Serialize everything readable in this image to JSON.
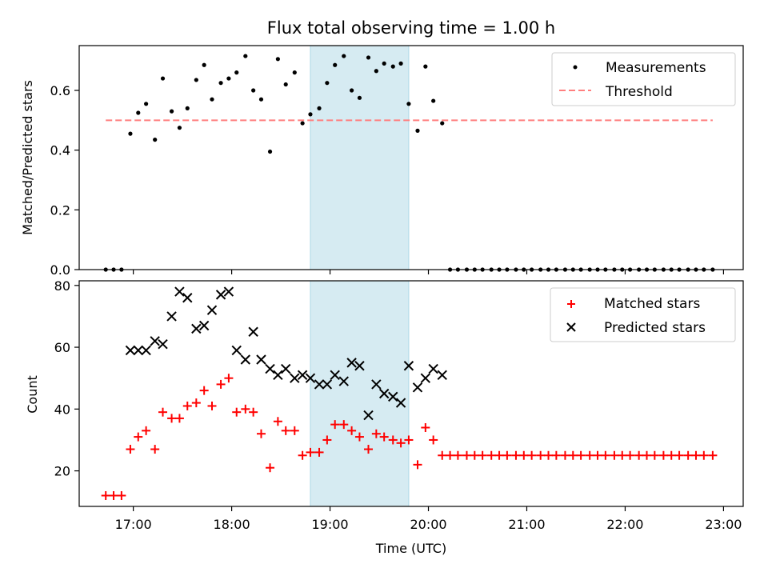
{
  "chart_data": [
    {
      "type": "scatter",
      "title": "Flux total observing time = 1.00 h",
      "xlabel": "",
      "ylabel": "Matched/Predicted stars",
      "xlim_hours": [
        16.45,
        23.2
      ],
      "ylim": [
        0,
        0.75
      ],
      "yticks": [
        0.0,
        0.2,
        0.4,
        0.6
      ],
      "ytick_labels": [
        "0.0",
        "0.2",
        "0.4",
        "0.6"
      ],
      "xticks_hours": [
        17,
        18,
        19,
        20,
        21,
        22,
        23
      ],
      "shaded_band_hours": [
        18.8,
        19.8
      ],
      "shaded_color": "#add8e6",
      "legend_location": "upper right",
      "series": [
        {
          "name": "Measurements",
          "marker": "dot",
          "color": "#000000",
          "points": [
            [
              16.72,
              0.0
            ],
            [
              16.8,
              0.0
            ],
            [
              16.88,
              0.0
            ],
            [
              16.97,
              0.455
            ],
            [
              17.05,
              0.525
            ],
            [
              17.13,
              0.555
            ],
            [
              17.22,
              0.435
            ],
            [
              17.3,
              0.64
            ],
            [
              17.39,
              0.53
            ],
            [
              17.47,
              0.475
            ],
            [
              17.55,
              0.54
            ],
            [
              17.64,
              0.635
            ],
            [
              17.72,
              0.685
            ],
            [
              17.8,
              0.57
            ],
            [
              17.89,
              0.625
            ],
            [
              17.97,
              0.64
            ],
            [
              18.05,
              0.66
            ],
            [
              18.14,
              0.715
            ],
            [
              18.22,
              0.6
            ],
            [
              18.3,
              0.57
            ],
            [
              18.39,
              0.395
            ],
            [
              18.47,
              0.705
            ],
            [
              18.55,
              0.62
            ],
            [
              18.64,
              0.66
            ],
            [
              18.72,
              0.49
            ],
            [
              18.8,
              0.52
            ],
            [
              18.89,
              0.54
            ],
            [
              18.97,
              0.625
            ],
            [
              19.05,
              0.685
            ],
            [
              19.14,
              0.715
            ],
            [
              19.22,
              0.6
            ],
            [
              19.3,
              0.575
            ],
            [
              19.39,
              0.71
            ],
            [
              19.47,
              0.665
            ],
            [
              19.55,
              0.69
            ],
            [
              19.64,
              0.68
            ],
            [
              19.72,
              0.69
            ],
            [
              19.8,
              0.555
            ],
            [
              19.89,
              0.465
            ],
            [
              19.97,
              0.68
            ],
            [
              20.05,
              0.565
            ],
            [
              20.14,
              0.49
            ],
            [
              20.22,
              0.0
            ],
            [
              20.3,
              0.0
            ],
            [
              20.39,
              0.0
            ],
            [
              20.47,
              0.0
            ],
            [
              20.55,
              0.0
            ],
            [
              20.64,
              0.0
            ],
            [
              20.72,
              0.0
            ],
            [
              20.8,
              0.0
            ],
            [
              20.89,
              0.0
            ],
            [
              20.97,
              0.0
            ],
            [
              21.05,
              0.0
            ],
            [
              21.14,
              0.0
            ],
            [
              21.22,
              0.0
            ],
            [
              21.3,
              0.0
            ],
            [
              21.39,
              0.0
            ],
            [
              21.47,
              0.0
            ],
            [
              21.55,
              0.0
            ],
            [
              21.64,
              0.0
            ],
            [
              21.72,
              0.0
            ],
            [
              21.8,
              0.0
            ],
            [
              21.89,
              0.0
            ],
            [
              21.97,
              0.0
            ],
            [
              22.05,
              0.0
            ],
            [
              22.14,
              0.0
            ],
            [
              22.22,
              0.0
            ],
            [
              22.3,
              0.0
            ],
            [
              22.39,
              0.0
            ],
            [
              22.47,
              0.0
            ],
            [
              22.55,
              0.0
            ],
            [
              22.64,
              0.0
            ],
            [
              22.72,
              0.0
            ],
            [
              22.8,
              0.0
            ],
            [
              22.89,
              0.0
            ]
          ]
        },
        {
          "name": "Threshold",
          "marker": "dashed-line",
          "color": "#ff7f7f",
          "points": [
            [
              16.72,
              0.5
            ],
            [
              22.89,
              0.5
            ]
          ]
        }
      ]
    },
    {
      "type": "scatter",
      "title": "",
      "xlabel": "Time (UTC)",
      "ylabel": "Count",
      "xlim_hours": [
        16.45,
        23.2
      ],
      "ylim": [
        8.5,
        81.5
      ],
      "yticks": [
        20,
        40,
        60,
        80
      ],
      "ytick_labels": [
        "20",
        "40",
        "60",
        "80"
      ],
      "xticks_hours": [
        17,
        18,
        19,
        20,
        21,
        22,
        23
      ],
      "xtick_labels": [
        "17:00",
        "18:00",
        "19:00",
        "20:00",
        "21:00",
        "22:00",
        "23:00"
      ],
      "shaded_band_hours": [
        18.8,
        19.8
      ],
      "shaded_color": "#add8e6",
      "legend_location": "upper right",
      "series": [
        {
          "name": "Matched stars",
          "marker": "plus",
          "color": "#ff0000",
          "points": [
            [
              16.72,
              12
            ],
            [
              16.8,
              12
            ],
            [
              16.88,
              12
            ],
            [
              16.97,
              27
            ],
            [
              17.05,
              31
            ],
            [
              17.13,
              33
            ],
            [
              17.22,
              27
            ],
            [
              17.3,
              39
            ],
            [
              17.39,
              37
            ],
            [
              17.47,
              37
            ],
            [
              17.55,
              41
            ],
            [
              17.64,
              42
            ],
            [
              17.72,
              46
            ],
            [
              17.8,
              41
            ],
            [
              17.89,
              48
            ],
            [
              17.97,
              50
            ],
            [
              18.05,
              39
            ],
            [
              18.14,
              40
            ],
            [
              18.22,
              39
            ],
            [
              18.3,
              32
            ],
            [
              18.39,
              21
            ],
            [
              18.47,
              36
            ],
            [
              18.55,
              33
            ],
            [
              18.64,
              33
            ],
            [
              18.72,
              25
            ],
            [
              18.8,
              26
            ],
            [
              18.89,
              26
            ],
            [
              18.97,
              30
            ],
            [
              19.05,
              35
            ],
            [
              19.14,
              35
            ],
            [
              19.22,
              33
            ],
            [
              19.3,
              31
            ],
            [
              19.39,
              27
            ],
            [
              19.47,
              32
            ],
            [
              19.55,
              31
            ],
            [
              19.64,
              30
            ],
            [
              19.72,
              29
            ],
            [
              19.8,
              30
            ],
            [
              19.89,
              22
            ],
            [
              19.97,
              34
            ],
            [
              20.05,
              30
            ],
            [
              20.14,
              25
            ],
            [
              20.22,
              25
            ],
            [
              20.3,
              25
            ],
            [
              20.39,
              25
            ],
            [
              20.47,
              25
            ],
            [
              20.55,
              25
            ],
            [
              20.64,
              25
            ],
            [
              20.72,
              25
            ],
            [
              20.8,
              25
            ],
            [
              20.89,
              25
            ],
            [
              20.97,
              25
            ],
            [
              21.05,
              25
            ],
            [
              21.14,
              25
            ],
            [
              21.22,
              25
            ],
            [
              21.3,
              25
            ],
            [
              21.39,
              25
            ],
            [
              21.47,
              25
            ],
            [
              21.55,
              25
            ],
            [
              21.64,
              25
            ],
            [
              21.72,
              25
            ],
            [
              21.8,
              25
            ],
            [
              21.89,
              25
            ],
            [
              21.97,
              25
            ],
            [
              22.05,
              25
            ],
            [
              22.14,
              25
            ],
            [
              22.22,
              25
            ],
            [
              22.3,
              25
            ],
            [
              22.39,
              25
            ],
            [
              22.47,
              25
            ],
            [
              22.55,
              25
            ],
            [
              22.64,
              25
            ],
            [
              22.72,
              25
            ],
            [
              22.8,
              25
            ],
            [
              22.89,
              25
            ]
          ]
        },
        {
          "name": "Predicted stars",
          "marker": "x",
          "color": "#000000",
          "points": [
            [
              16.97,
              59
            ],
            [
              17.05,
              59
            ],
            [
              17.13,
              59
            ],
            [
              17.22,
              62
            ],
            [
              17.3,
              61
            ],
            [
              17.39,
              70
            ],
            [
              17.47,
              78
            ],
            [
              17.55,
              76
            ],
            [
              17.64,
              66
            ],
            [
              17.72,
              67
            ],
            [
              17.8,
              72
            ],
            [
              17.89,
              77
            ],
            [
              17.97,
              78
            ],
            [
              18.05,
              59
            ],
            [
              18.14,
              56
            ],
            [
              18.22,
              65
            ],
            [
              18.3,
              56
            ],
            [
              18.39,
              53
            ],
            [
              18.47,
              51
            ],
            [
              18.55,
              53
            ],
            [
              18.64,
              50
            ],
            [
              18.72,
              51
            ],
            [
              18.8,
              50
            ],
            [
              18.89,
              48
            ],
            [
              18.97,
              48
            ],
            [
              19.05,
              51
            ],
            [
              19.14,
              49
            ],
            [
              19.22,
              55
            ],
            [
              19.3,
              54
            ],
            [
              19.39,
              38
            ],
            [
              19.47,
              48
            ],
            [
              19.55,
              45
            ],
            [
              19.64,
              44
            ],
            [
              19.72,
              42
            ],
            [
              19.8,
              54
            ],
            [
              19.89,
              47
            ],
            [
              19.97,
              50
            ],
            [
              20.05,
              53
            ],
            [
              20.14,
              51
            ]
          ]
        }
      ]
    }
  ]
}
